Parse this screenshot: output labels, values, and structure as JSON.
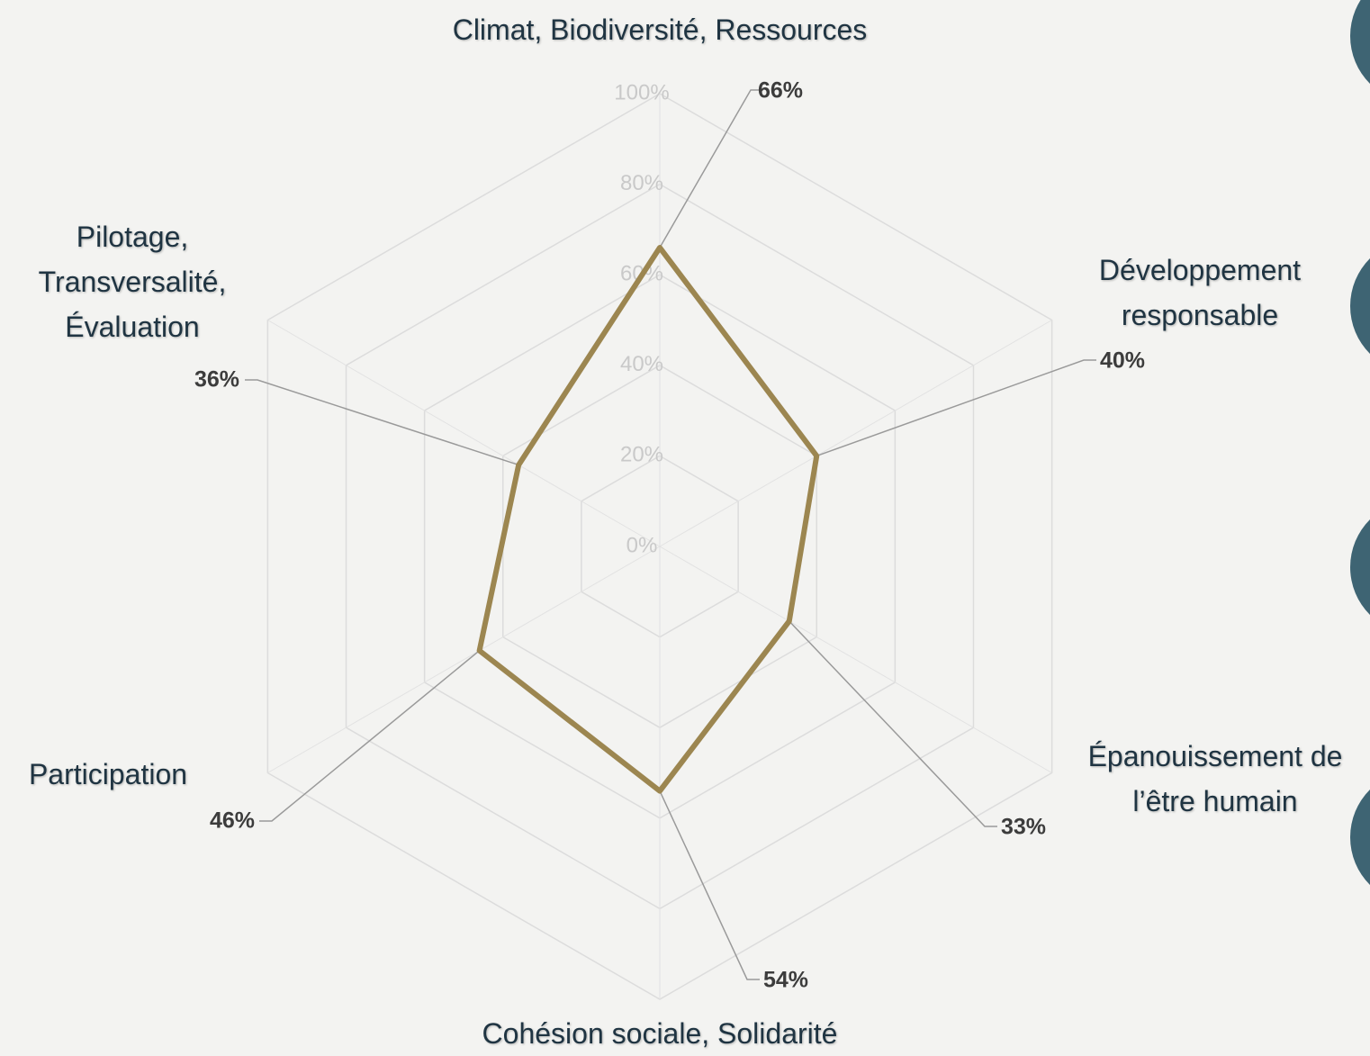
{
  "chart_data": {
    "type": "radar",
    "categories": [
      "Climat, Biodiversité, Ressources",
      "Développement responsable",
      "Épanouissement de l’être humain",
      "Cohésion sociale, Solidarité",
      "Participation",
      "Pilotage, Transversalité, Évaluation"
    ],
    "values": [
      66,
      40,
      33,
      54,
      46,
      36
    ],
    "value_labels": [
      "66%",
      "40%",
      "33%",
      "54%",
      "46%",
      "36%"
    ],
    "color": "#9c8650",
    "ylim": [
      0,
      100
    ],
    "yticks": [
      {
        "value": 0,
        "label": "0%"
      },
      {
        "value": 20,
        "label": "20%"
      },
      {
        "value": 40,
        "label": "40%"
      },
      {
        "value": 60,
        "label": "60%"
      },
      {
        "value": 80,
        "label": "80%"
      },
      {
        "value": 100,
        "label": "100%"
      }
    ],
    "grid": true
  }
}
